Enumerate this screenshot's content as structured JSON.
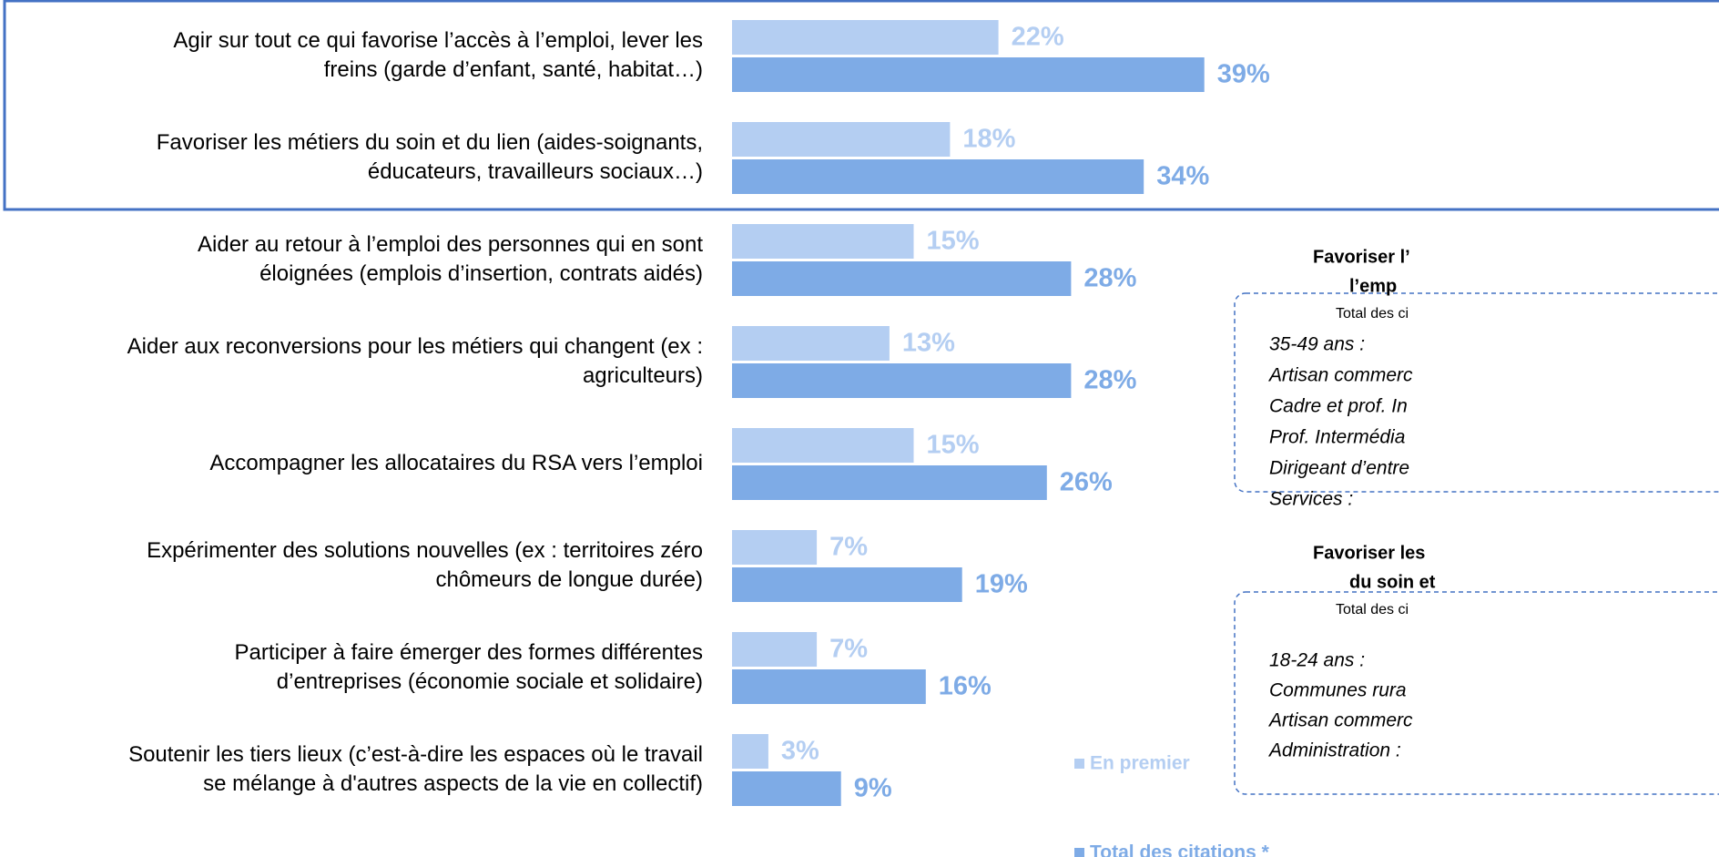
{
  "chart_data": {
    "type": "bar",
    "categories": [
      [
        "Agir sur tout ce qui favorise l’accès à l’emploi, lever les",
        "freins (garde d’enfant, santé, habitat…)"
      ],
      [
        "Favoriser les métiers du soin et du lien (aides-soignants,",
        "éducateurs, travailleurs sociaux…)"
      ],
      [
        "Aider au retour à l’emploi des personnes qui en sont",
        "éloignées (emplois d’insertion, contrats aidés)"
      ],
      [
        "Aider aux reconversions pour les métiers qui changent (ex :",
        "agriculteurs)"
      ],
      [
        "Accompagner les allocataires du RSA vers l’emploi"
      ],
      [
        "Expérimenter des solutions nouvelles (ex : territoires zéro",
        "chômeurs de longue durée)"
      ],
      [
        "Participer à faire émerger des formes différentes",
        "d’entreprises (économie sociale et solidaire)"
      ],
      [
        "Soutenir les tiers lieux (c’est-à-dire les espaces où le travail",
        "se mélange à d'autres aspects de la vie en collectif)"
      ]
    ],
    "series": [
      {
        "name": "En premier",
        "color": "#b4cef2",
        "values": [
          22,
          18,
          15,
          13,
          15,
          7,
          7,
          3
        ],
        "value_labels": [
          "22%",
          "18%",
          "15%",
          "13%",
          "15%",
          "7%",
          "7%",
          "3%"
        ]
      },
      {
        "name": "Total des citations *",
        "color": "#7eabe6",
        "values": [
          39,
          34,
          28,
          28,
          26,
          19,
          16,
          9
        ],
        "value_labels": [
          "39%",
          "34%",
          "28%",
          "28%",
          "26%",
          "19%",
          "16%",
          "9%"
        ]
      }
    ],
    "xlim": [
      0,
      100
    ],
    "panels": [
      {
        "title": [
          "Favoriser l’",
          "l’emp"
        ],
        "subtitle": "Total des ci",
        "items": [
          "35-49 ans :",
          "Artisan commerc",
          "Cadre et prof. In",
          "Prof. Intermédia",
          "Dirigeant d’entre",
          "Services :"
        ]
      },
      {
        "title": [
          "Favoriser les",
          "du soin et"
        ],
        "subtitle": "Total des ci",
        "items": [
          "18-24 ans :",
          "Communes rura",
          "Artisan commerc",
          "Administration :"
        ]
      }
    ]
  }
}
